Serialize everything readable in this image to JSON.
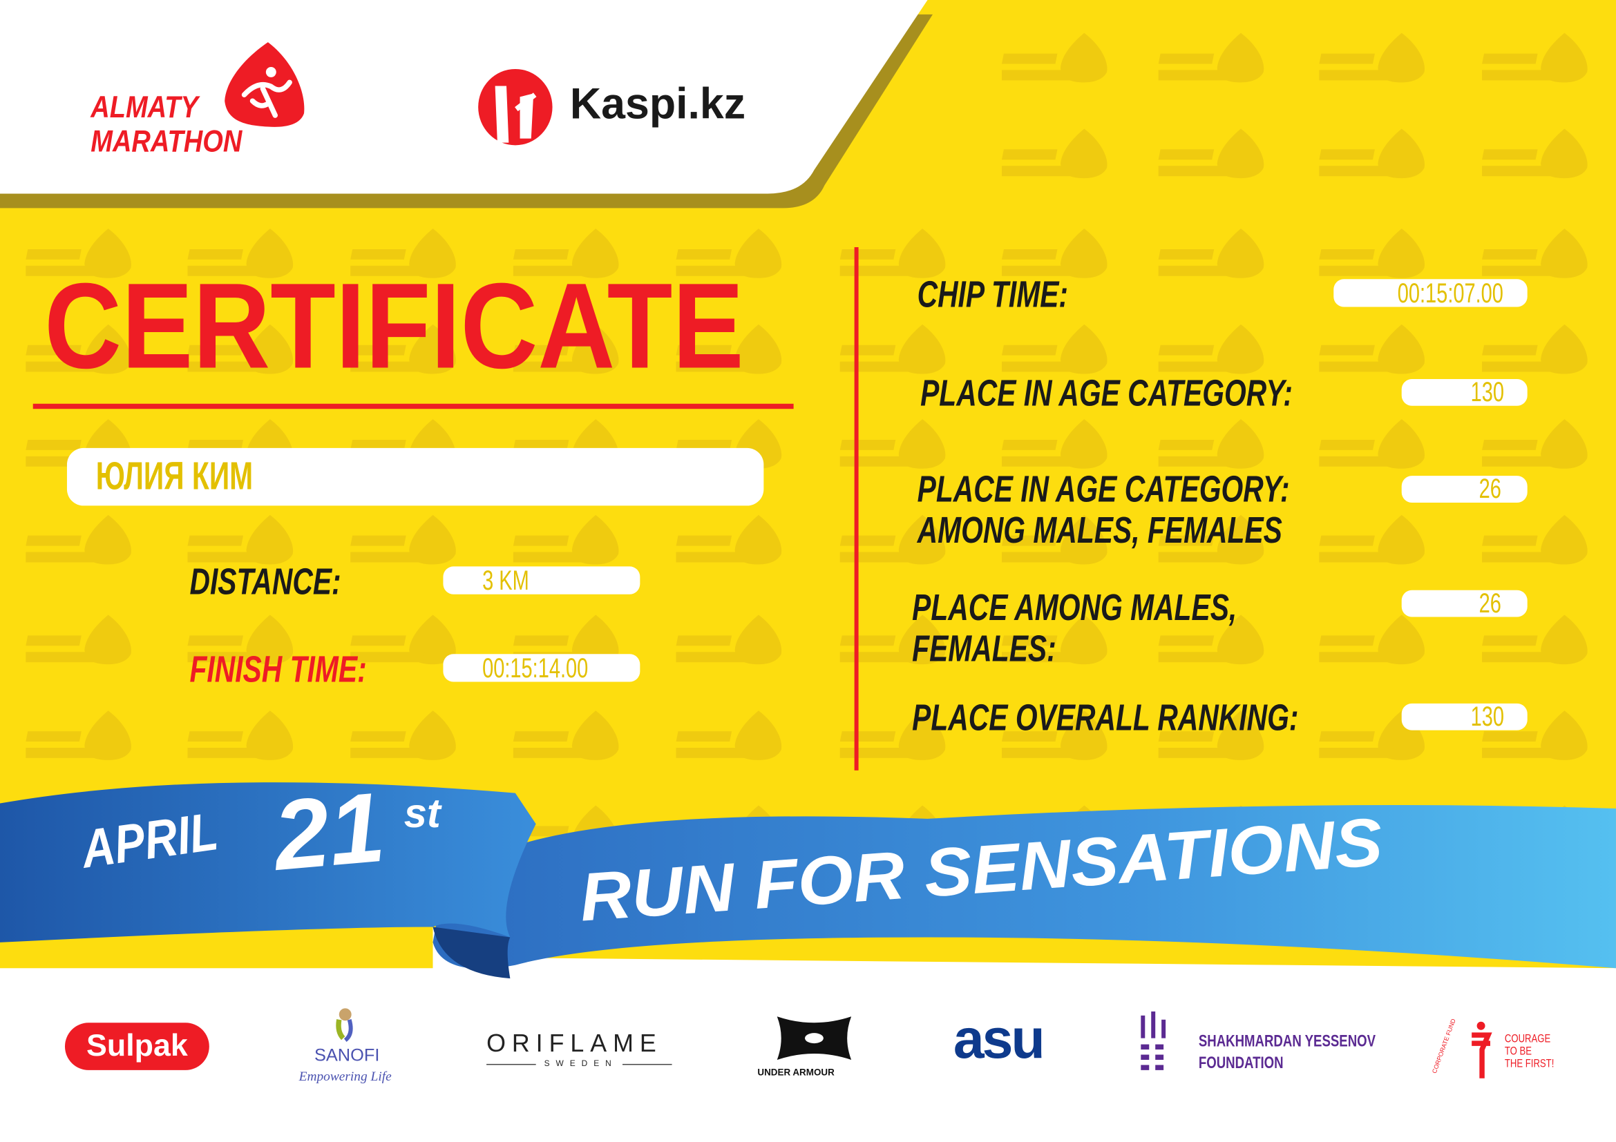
{
  "watermark": {
    "line1": "ALMATY",
    "line2": "MARATHON"
  },
  "header": {
    "logo_line1": "ALMATY",
    "logo_line2": "MARATHON",
    "sponsor": "Kaspi.kz"
  },
  "certificate": {
    "title": "CERTIFICATE",
    "name": "ЮЛИЯ КИМ",
    "distance_label": "DISTANCE:",
    "distance_value": "3 KM",
    "finish_label": "FINISH TIME:",
    "finish_value": "00:15:14.00"
  },
  "results": {
    "chip_label": "CHIP TIME:",
    "chip_value": "00:15:07.00",
    "age_label": "PLACE IN AGE CATEGORY:",
    "age_value": "130",
    "age_gender_label1": "PLACE IN AGE CATEGORY:",
    "age_gender_label2": "AMONG MALES, FEMALES",
    "age_gender_value": "26",
    "gender_label1": "PLACE AMONG MALES,",
    "gender_label2": "FEMALES:",
    "gender_value": "26",
    "overall_label": "PLACE OVERALL RANKING:",
    "overall_value": "130"
  },
  "ribbon": {
    "month": "APRIL",
    "day": "21",
    "suffix": "st",
    "slogan": "RUN FOR SENSATIONS"
  },
  "sponsors": {
    "sulpak": "Sulpak",
    "sanofi": "SANOFI",
    "sanofi_tagline": "Empowering Life",
    "oriflame": "ORIFLAME",
    "oriflame_sub": "SWEDEN",
    "under_armour": "UNDER ARMOUR",
    "asu": "asu",
    "yessenov1": "SHAKHMARDAN YESSENOV",
    "yessenov2": "FOUNDATION",
    "courage_fund": "CORPORATE FUND",
    "courage1": "COURAGE",
    "courage2": "TO BE",
    "courage3": "THE FIRST!"
  },
  "colors": {
    "yellow": "#FDDD0F",
    "red": "#EE1C25",
    "blue": "#2F6FC4",
    "olive": "#A78F1E",
    "value_text": "#E3C000"
  }
}
